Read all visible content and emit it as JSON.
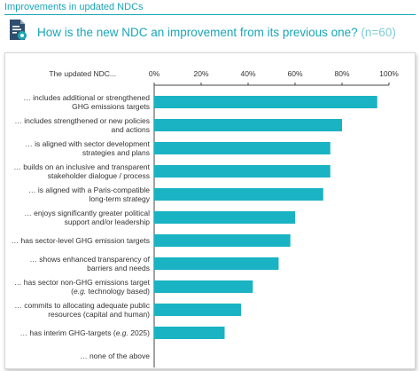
{
  "header": {
    "section_title": "Improvements in updated NDCs",
    "question": "How is the new NDC an improvement from its previous one?",
    "sample_size": "(n=60)"
  },
  "icons": [
    "document-settings-icon"
  ],
  "colors": {
    "accent": "#1aa6b7",
    "bar": "#19b3c3",
    "muted_accent": "#7fcbd4"
  },
  "chart_data": {
    "type": "bar",
    "orientation": "horizontal",
    "category_header": "The updated NDC...",
    "categories": [
      [
        "… includes additional or strengthened",
        "GHG emissions targets"
      ],
      [
        "… includes strengthened or new policies",
        "and actions"
      ],
      [
        "… is aligned with sector development",
        "strategies and plans"
      ],
      [
        "… builds on an inclusive and transparent",
        "stakeholder dialogue / process"
      ],
      [
        "… is aligned with a Paris-compatible",
        "long-term strategy"
      ],
      [
        "… enjoys significantly greater political",
        "support and/or leadership"
      ],
      [
        "… has sector-level GHG emission targets"
      ],
      [
        "… shows enhanced transparency of",
        "barriers and needs"
      ],
      [
        "… has sector non-GHG emissions target",
        "(e.g. technology based)"
      ],
      [
        "… commits to allocating adequate public",
        "resources (capital and human)"
      ],
      [
        "… has interim GHG-targets (e.g. 2025)"
      ],
      [
        "… none of the above"
      ]
    ],
    "values": [
      95,
      80,
      75,
      75,
      72,
      60,
      58,
      53,
      42,
      37,
      30,
      0
    ],
    "xlim": [
      0,
      100
    ],
    "ticks": [
      "0%",
      "20%",
      "40%",
      "60%",
      "80%",
      "100%"
    ],
    "axis_position": "top",
    "grid": false
  }
}
